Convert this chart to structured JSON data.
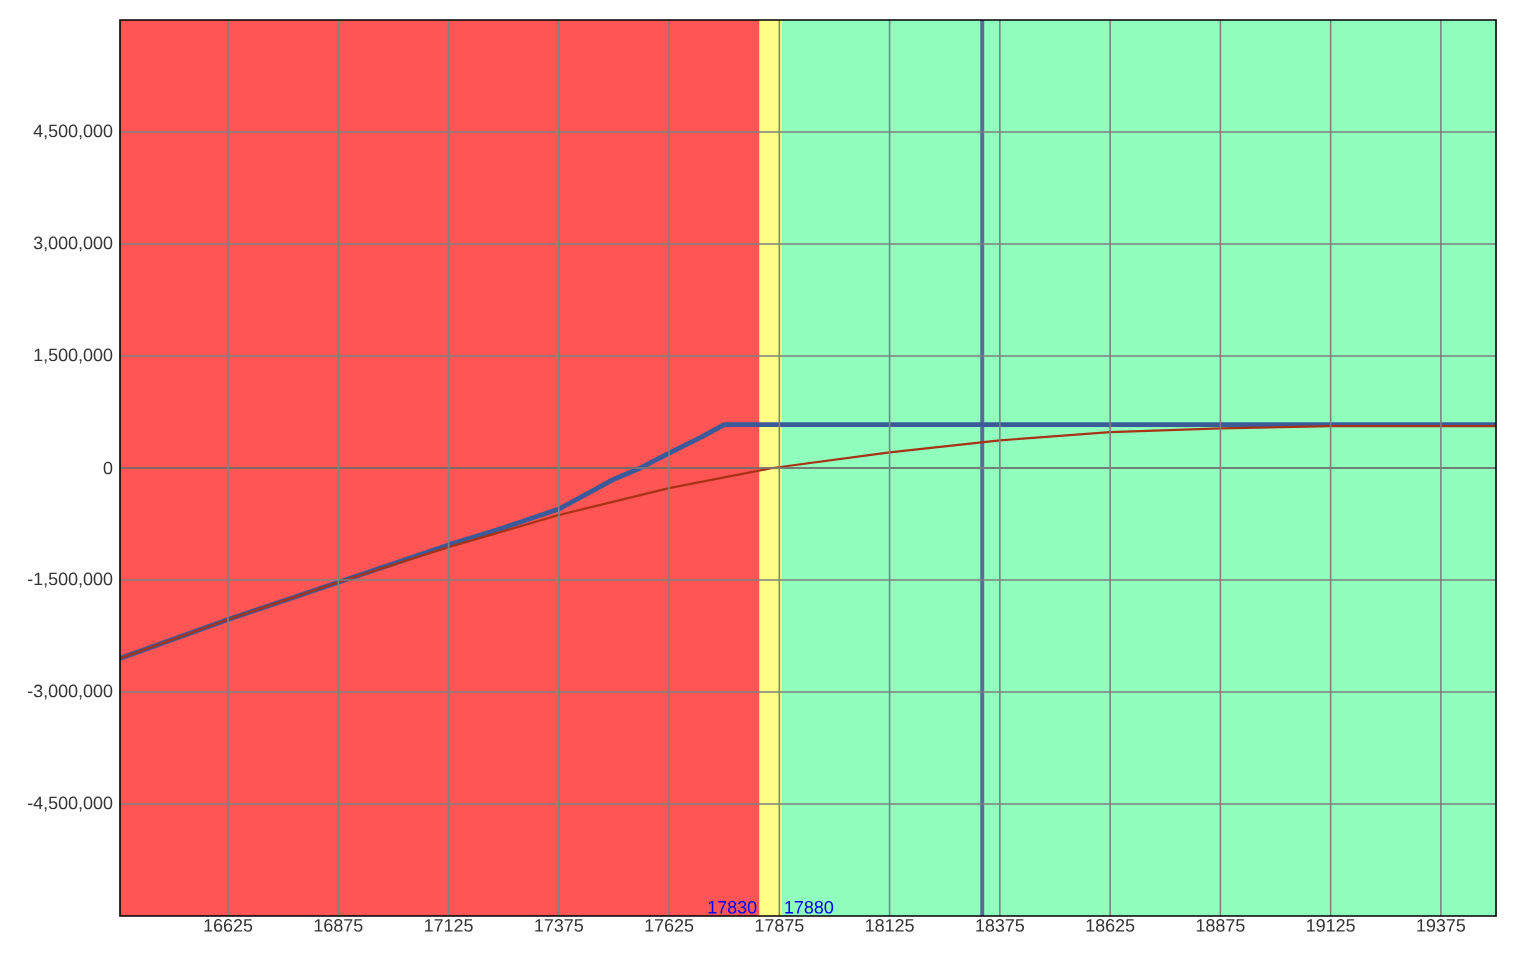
{
  "chart_data": {
    "type": "line",
    "xlim": [
      16380,
      19500
    ],
    "ylim": [
      -6000000,
      6000000
    ],
    "xticks": [
      16625,
      16875,
      17125,
      17375,
      17625,
      17875,
      18125,
      18375,
      18625,
      18875,
      19125,
      19375
    ],
    "yticks": [
      {
        "value": -4500000,
        "label": "-4,500,000"
      },
      {
        "value": -3000000,
        "label": "-3,000,000"
      },
      {
        "value": -1500000,
        "label": "-1,500,000"
      },
      0,
      {
        "value": 1500000,
        "label": "1,500,000"
      },
      {
        "value": 3000000,
        "label": "3,000,000"
      },
      {
        "value": 4500000,
        "label": "4,500,000"
      }
    ],
    "grid": true,
    "series": [
      {
        "color": "#3a5a9a",
        "x": [
          16380,
          16625,
          16875,
          17125,
          17250,
          17375,
          17500,
          17560,
          17625,
          17700,
          17750,
          19500
        ],
        "values": [
          -2550000,
          -2030000,
          -1530000,
          -1030000,
          -800000,
          -550000,
          -150000,
          0,
          200000,
          420000,
          580000,
          580000
        ]
      },
      {
        "color": "#a83216",
        "x": [
          16380,
          16625,
          16875,
          17125,
          17375,
          17625,
          17860,
          18125,
          18375,
          18625,
          18875,
          19125,
          19500
        ],
        "values": [
          -2550000,
          -2030000,
          -1530000,
          -1060000,
          -630000,
          -270000,
          0,
          210000,
          370000,
          480000,
          530000,
          560000,
          560000
        ]
      }
    ],
    "bands": [
      {
        "axis": "x",
        "from": 16380,
        "to": 17830,
        "color": "#ff5555"
      },
      {
        "axis": "x",
        "from": 17830,
        "to": 17880,
        "color": "#ffff88"
      },
      {
        "axis": "x",
        "from": 17880,
        "to": 19500,
        "color": "#90ffbe"
      }
    ],
    "ref_lines": [
      {
        "axis": "y",
        "value": 0,
        "color": "#000000"
      },
      {
        "axis": "x",
        "value": 18335,
        "color": "#5a6a9a"
      }
    ],
    "annotations": [
      {
        "text": "17830",
        "x": 17830,
        "y": -6000000
      },
      {
        "text": "17880",
        "x": 17880,
        "y": -6000000
      }
    ]
  }
}
